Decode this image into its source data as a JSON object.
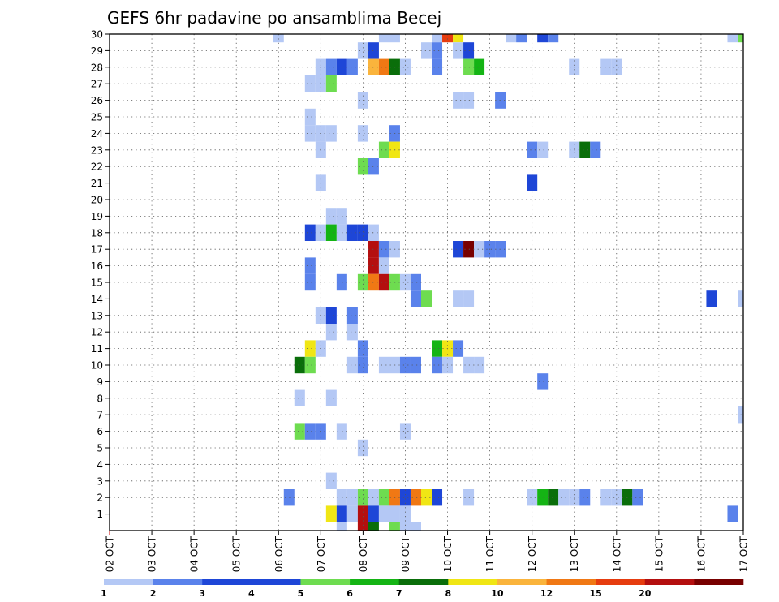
{
  "chart_data": {
    "type": "heatmap",
    "title": "GEFS 6hr padavine po ansamblima Becej",
    "x_tick_labels": [
      "02 OCT",
      "03 OCT",
      "04 OCT",
      "05 OCT",
      "06 OCT",
      "07 OCT",
      "08 OCT",
      "09 OCT",
      "10 OCT",
      "11 OCT",
      "12 OCT",
      "13 OCT",
      "14 OCT",
      "15 OCT",
      "16 OCT",
      "17 OCT"
    ],
    "y_tick_labels": [
      "1",
      "2",
      "3",
      "4",
      "5",
      "6",
      "7",
      "8",
      "9",
      "10",
      "11",
      "12",
      "13",
      "14",
      "15",
      "16",
      "17",
      "18",
      "19",
      "20",
      "21",
      "22",
      "23",
      "24",
      "25",
      "26",
      "27",
      "28",
      "29",
      "30"
    ],
    "x_range_days": [
      2,
      17
    ],
    "y_range": [
      0,
      30
    ],
    "grid": true,
    "legend_position": "bottom",
    "legend_labels": [
      "1",
      "2",
      "3",
      "4",
      "5",
      "6",
      "7",
      "8",
      "10",
      "12",
      "15",
      "20"
    ],
    "legend_colors": [
      "#b4c8f5",
      "#5a82eb",
      "#1e46d7",
      "#1e46d7",
      "#6edc50",
      "#14b414",
      "#0a6e0a",
      "#f0e614",
      "#fab43c",
      "#f07814",
      "#e63c0f",
      "#b40f0f",
      "#780000"
    ],
    "value_unit": "legend class index (0 = 1-2 mm ... 12 = >20 mm)",
    "cells": [
      {
        "x": 6.0,
        "y": 30,
        "c": 0
      },
      {
        "x": 8.5,
        "y": 30,
        "c": 0
      },
      {
        "x": 8.75,
        "y": 30,
        "c": 0
      },
      {
        "x": 9.75,
        "y": 30,
        "c": 0
      },
      {
        "x": 10.0,
        "y": 30,
        "c": 10
      },
      {
        "x": 10.25,
        "y": 30,
        "c": 7
      },
      {
        "x": 11.5,
        "y": 30,
        "c": 0
      },
      {
        "x": 11.75,
        "y": 30,
        "c": 1
      },
      {
        "x": 12.25,
        "y": 30,
        "c": 3
      },
      {
        "x": 12.5,
        "y": 30,
        "c": 1
      },
      {
        "x": 16.75,
        "y": 30,
        "c": 0
      },
      {
        "x": 17.0,
        "y": 30,
        "c": 4
      },
      {
        "x": 8.0,
        "y": 29,
        "c": 0
      },
      {
        "x": 8.25,
        "y": 29,
        "c": 3
      },
      {
        "x": 9.5,
        "y": 29,
        "c": 0
      },
      {
        "x": 9.75,
        "y": 29,
        "c": 1
      },
      {
        "x": 10.25,
        "y": 29,
        "c": 0
      },
      {
        "x": 10.5,
        "y": 29,
        "c": 3
      },
      {
        "x": 7.0,
        "y": 28,
        "c": 0
      },
      {
        "x": 7.25,
        "y": 28,
        "c": 1
      },
      {
        "x": 7.5,
        "y": 28,
        "c": 3
      },
      {
        "x": 7.75,
        "y": 28,
        "c": 1
      },
      {
        "x": 8.25,
        "y": 28,
        "c": 8
      },
      {
        "x": 8.5,
        "y": 28,
        "c": 9
      },
      {
        "x": 8.75,
        "y": 28,
        "c": 6
      },
      {
        "x": 9.0,
        "y": 28,
        "c": 0
      },
      {
        "x": 9.75,
        "y": 28,
        "c": 1
      },
      {
        "x": 10.5,
        "y": 28,
        "c": 4
      },
      {
        "x": 10.75,
        "y": 28,
        "c": 5
      },
      {
        "x": 13.0,
        "y": 28,
        "c": 0
      },
      {
        "x": 13.75,
        "y": 28,
        "c": 0
      },
      {
        "x": 14.0,
        "y": 28,
        "c": 0
      },
      {
        "x": 6.75,
        "y": 27,
        "c": 0
      },
      {
        "x": 7.0,
        "y": 27,
        "c": 0
      },
      {
        "x": 7.25,
        "y": 27,
        "c": 4
      },
      {
        "x": 8.0,
        "y": 26,
        "c": 0
      },
      {
        "x": 10.25,
        "y": 26,
        "c": 0
      },
      {
        "x": 10.5,
        "y": 26,
        "c": 0
      },
      {
        "x": 11.25,
        "y": 26,
        "c": 1
      },
      {
        "x": 6.75,
        "y": 25,
        "c": 0
      },
      {
        "x": 6.75,
        "y": 24,
        "c": 0
      },
      {
        "x": 7.0,
        "y": 24,
        "c": 0
      },
      {
        "x": 7.25,
        "y": 24,
        "c": 0
      },
      {
        "x": 8.0,
        "y": 24,
        "c": 0
      },
      {
        "x": 8.75,
        "y": 24,
        "c": 1
      },
      {
        "x": 7.0,
        "y": 23,
        "c": 0
      },
      {
        "x": 8.5,
        "y": 23,
        "c": 4
      },
      {
        "x": 8.75,
        "y": 23,
        "c": 7
      },
      {
        "x": 12.0,
        "y": 23,
        "c": 1
      },
      {
        "x": 12.25,
        "y": 23,
        "c": 0
      },
      {
        "x": 13.0,
        "y": 23,
        "c": 0
      },
      {
        "x": 13.25,
        "y": 23,
        "c": 6
      },
      {
        "x": 13.5,
        "y": 23,
        "c": 1
      },
      {
        "x": 8.0,
        "y": 22,
        "c": 4
      },
      {
        "x": 8.25,
        "y": 22,
        "c": 1
      },
      {
        "x": 7.0,
        "y": 21,
        "c": 0
      },
      {
        "x": 12.0,
        "y": 21,
        "c": 3
      },
      {
        "x": 7.25,
        "y": 19,
        "c": 0
      },
      {
        "x": 7.5,
        "y": 19,
        "c": 0
      },
      {
        "x": 6.75,
        "y": 18,
        "c": 3
      },
      {
        "x": 7.0,
        "y": 18,
        "c": 0
      },
      {
        "x": 7.25,
        "y": 18,
        "c": 5
      },
      {
        "x": 7.5,
        "y": 18,
        "c": 0
      },
      {
        "x": 7.75,
        "y": 18,
        "c": 3
      },
      {
        "x": 8.0,
        "y": 18,
        "c": 3
      },
      {
        "x": 8.25,
        "y": 18,
        "c": 0
      },
      {
        "x": 8.25,
        "y": 17,
        "c": 11
      },
      {
        "x": 8.5,
        "y": 17,
        "c": 1
      },
      {
        "x": 8.75,
        "y": 17,
        "c": 0
      },
      {
        "x": 10.25,
        "y": 17,
        "c": 3
      },
      {
        "x": 10.5,
        "y": 17,
        "c": 12
      },
      {
        "x": 10.75,
        "y": 17,
        "c": 0
      },
      {
        "x": 11.0,
        "y": 17,
        "c": 1
      },
      {
        "x": 11.25,
        "y": 17,
        "c": 1
      },
      {
        "x": 6.75,
        "y": 16,
        "c": 1
      },
      {
        "x": 8.25,
        "y": 16,
        "c": 11
      },
      {
        "x": 8.5,
        "y": 16,
        "c": 0
      },
      {
        "x": 6.75,
        "y": 15,
        "c": 1
      },
      {
        "x": 7.5,
        "y": 15,
        "c": 1
      },
      {
        "x": 8.0,
        "y": 15,
        "c": 4
      },
      {
        "x": 8.25,
        "y": 15,
        "c": 9
      },
      {
        "x": 8.5,
        "y": 15,
        "c": 11
      },
      {
        "x": 8.75,
        "y": 15,
        "c": 4
      },
      {
        "x": 9.0,
        "y": 15,
        "c": 0
      },
      {
        "x": 9.25,
        "y": 15,
        "c": 1
      },
      {
        "x": 9.25,
        "y": 14,
        "c": 1
      },
      {
        "x": 9.5,
        "y": 14,
        "c": 4
      },
      {
        "x": 10.25,
        "y": 14,
        "c": 0
      },
      {
        "x": 10.5,
        "y": 14,
        "c": 0
      },
      {
        "x": 16.25,
        "y": 14,
        "c": 3
      },
      {
        "x": 17.0,
        "y": 14,
        "c": 0
      },
      {
        "x": 7.0,
        "y": 13,
        "c": 0
      },
      {
        "x": 7.25,
        "y": 13,
        "c": 3
      },
      {
        "x": 7.75,
        "y": 13,
        "c": 1
      },
      {
        "x": 7.25,
        "y": 12,
        "c": 0
      },
      {
        "x": 7.75,
        "y": 12,
        "c": 0
      },
      {
        "x": 6.75,
        "y": 11,
        "c": 7
      },
      {
        "x": 7.0,
        "y": 11,
        "c": 0
      },
      {
        "x": 8.0,
        "y": 11,
        "c": 1
      },
      {
        "x": 9.75,
        "y": 11,
        "c": 5
      },
      {
        "x": 10.0,
        "y": 11,
        "c": 7
      },
      {
        "x": 10.25,
        "y": 11,
        "c": 1
      },
      {
        "x": 6.5,
        "y": 10,
        "c": 6
      },
      {
        "x": 6.75,
        "y": 10,
        "c": 4
      },
      {
        "x": 7.75,
        "y": 10,
        "c": 0
      },
      {
        "x": 8.0,
        "y": 10,
        "c": 1
      },
      {
        "x": 8.5,
        "y": 10,
        "c": 0
      },
      {
        "x": 8.75,
        "y": 10,
        "c": 0
      },
      {
        "x": 9.0,
        "y": 10,
        "c": 1
      },
      {
        "x": 9.25,
        "y": 10,
        "c": 1
      },
      {
        "x": 9.75,
        "y": 10,
        "c": 1
      },
      {
        "x": 10.0,
        "y": 10,
        "c": 0
      },
      {
        "x": 10.5,
        "y": 10,
        "c": 0
      },
      {
        "x": 10.75,
        "y": 10,
        "c": 0
      },
      {
        "x": 12.25,
        "y": 9,
        "c": 1
      },
      {
        "x": 6.5,
        "y": 8,
        "c": 0
      },
      {
        "x": 7.25,
        "y": 8,
        "c": 0
      },
      {
        "x": 17.0,
        "y": 7,
        "c": 0
      },
      {
        "x": 6.5,
        "y": 6,
        "c": 4
      },
      {
        "x": 6.75,
        "y": 6,
        "c": 1
      },
      {
        "x": 7.0,
        "y": 6,
        "c": 1
      },
      {
        "x": 7.5,
        "y": 6,
        "c": 0
      },
      {
        "x": 9.0,
        "y": 6,
        "c": 0
      },
      {
        "x": 8.0,
        "y": 5,
        "c": 0
      },
      {
        "x": 7.25,
        "y": 3,
        "c": 0
      },
      {
        "x": 6.25,
        "y": 2,
        "c": 1
      },
      {
        "x": 7.5,
        "y": 2,
        "c": 0
      },
      {
        "x": 7.75,
        "y": 2,
        "c": 0
      },
      {
        "x": 8.0,
        "y": 2,
        "c": 4
      },
      {
        "x": 8.25,
        "y": 2,
        "c": 0
      },
      {
        "x": 8.5,
        "y": 2,
        "c": 4
      },
      {
        "x": 8.75,
        "y": 2,
        "c": 9
      },
      {
        "x": 9.0,
        "y": 2,
        "c": 3
      },
      {
        "x": 9.25,
        "y": 2,
        "c": 9
      },
      {
        "x": 9.5,
        "y": 2,
        "c": 7
      },
      {
        "x": 9.75,
        "y": 2,
        "c": 3
      },
      {
        "x": 10.5,
        "y": 2,
        "c": 0
      },
      {
        "x": 12.0,
        "y": 2,
        "c": 0
      },
      {
        "x": 12.25,
        "y": 2,
        "c": 5
      },
      {
        "x": 12.5,
        "y": 2,
        "c": 6
      },
      {
        "x": 12.75,
        "y": 2,
        "c": 0
      },
      {
        "x": 13.0,
        "y": 2,
        "c": 0
      },
      {
        "x": 13.25,
        "y": 2,
        "c": 1
      },
      {
        "x": 13.75,
        "y": 2,
        "c": 0
      },
      {
        "x": 14.0,
        "y": 2,
        "c": 0
      },
      {
        "x": 14.25,
        "y": 2,
        "c": 6
      },
      {
        "x": 14.5,
        "y": 2,
        "c": 1
      },
      {
        "x": 7.25,
        "y": 1,
        "c": 7
      },
      {
        "x": 7.5,
        "y": 1,
        "c": 3
      },
      {
        "x": 7.75,
        "y": 1,
        "c": 0
      },
      {
        "x": 8.0,
        "y": 1,
        "c": 11
      },
      {
        "x": 8.25,
        "y": 1,
        "c": 3
      },
      {
        "x": 8.5,
        "y": 1,
        "c": 0
      },
      {
        "x": 8.75,
        "y": 1,
        "c": 0
      },
      {
        "x": 9.0,
        "y": 1,
        "c": 0
      },
      {
        "x": 16.75,
        "y": 1,
        "c": 1
      },
      {
        "x": 7.5,
        "y": 0,
        "c": 0
      },
      {
        "x": 8.0,
        "y": 0,
        "c": 11
      },
      {
        "x": 8.25,
        "y": 0,
        "c": 6
      },
      {
        "x": 8.75,
        "y": 0,
        "c": 4
      },
      {
        "x": 9.0,
        "y": 0,
        "c": 0
      },
      {
        "x": 9.25,
        "y": 0,
        "c": 0
      }
    ]
  }
}
